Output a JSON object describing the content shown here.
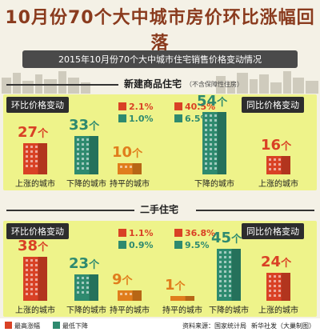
{
  "title": "10月份70个大中城市房价环比涨幅回落",
  "subtitle": "2015年10月份70个大中城市住宅销售价格变动情况",
  "colors": {
    "up": "#d94125",
    "down": "#2e8a6f",
    "flat": "#e07d1c",
    "panel": "#eef38a",
    "dark": "#2d2d2d"
  },
  "new_homes": {
    "heading": "新建商品住宅",
    "note": "（不含保障性住房）",
    "mom_label": "环比价格变动",
    "yoy_label": "同比价格变动",
    "mom_max_up": "2.1%",
    "mom_max_down": "1.0%",
    "yoy_max_up": "40.5%",
    "yoy_max_down": "6.5%"
  },
  "second_hand": {
    "heading": "二手住宅",
    "mom_label": "环比价格变动",
    "yoy_label": "同比价格变动",
    "mom_max_up": "1.1%",
    "mom_max_down": "0.9%",
    "yoy_max_up": "36.8%",
    "yoy_max_down": "9.5%"
  },
  "unit": "个",
  "legend": {
    "max_up": "最高涨幅",
    "max_down": "最低下降"
  },
  "source": "资料来源：国家统计局",
  "credit": "新华社发（大巢制图）",
  "chart_data": [
    {
      "type": "bar",
      "title": "新建商品住宅 环比价格变动",
      "categories": [
        "上涨的城市",
        "下降的城市",
        "持平的城市"
      ],
      "values": [
        27,
        33,
        10
      ],
      "unit": "个"
    },
    {
      "type": "bar",
      "title": "新建商品住宅 同比价格变动",
      "categories": [
        "下降的城市",
        "上涨的城市"
      ],
      "values": [
        54,
        16
      ],
      "unit": "个"
    },
    {
      "type": "bar",
      "title": "二手住宅 环比价格变动",
      "categories": [
        "上涨的城市",
        "下降的城市",
        "持平的城市"
      ],
      "values": [
        38,
        23,
        9
      ],
      "unit": "个"
    },
    {
      "type": "bar",
      "title": "二手住宅 同比价格变动",
      "categories": [
        "持平的城市",
        "下降的城市",
        "上涨的城市"
      ],
      "values": [
        1,
        45,
        24
      ],
      "unit": "个"
    }
  ]
}
